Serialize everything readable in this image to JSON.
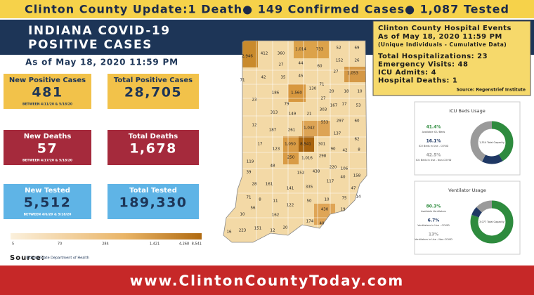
{
  "header": {
    "title": "Clinton County Update:1 Death● 149 Confirmed Cases● 1,087 Tested"
  },
  "indiana": {
    "title": "INDIANA COVID-19",
    "subtitle": "POSITIVE CASES",
    "as_of": "As of May 18, 2020 11:59 PM",
    "stats": [
      {
        "label": "New Positive Cases",
        "value": "481",
        "note": "BETWEEN 4/11/20 & 5/18/20"
      },
      {
        "label": "Total Positive Cases",
        "value": "28,705"
      },
      {
        "label": "New Deaths",
        "value": "57",
        "note": "BETWEEN 4/17/20 & 5/18/20"
      },
      {
        "label": "Total Deaths",
        "value": "1,678"
      },
      {
        "label": "New Tested",
        "value": "5,512",
        "note": "BETWEEN 4/6/20 & 5/18/20"
      },
      {
        "label": "Total Tested",
        "value": "189,330"
      }
    ]
  },
  "legend": {
    "ticks": [
      "5",
      "70",
      "284",
      "1,421",
      "4,268",
      "8,541"
    ]
  },
  "source": {
    "label": "Source:",
    "logo": "Indiana State Department of Health"
  },
  "map": {
    "county_labels": [
      "2,946",
      "412",
      "360",
      "1,014",
      "733",
      "52",
      "69",
      "27",
      "44",
      "60",
      "152",
      "26",
      "71",
      "42",
      "35",
      "45",
      "27",
      "1,053",
      "186",
      "1,560",
      "130",
      "71",
      "20",
      "18",
      "10",
      "23",
      "79",
      "27",
      "313",
      "149",
      "21",
      "303",
      "167",
      "17",
      "53",
      "12",
      "187",
      "261",
      "1,042",
      "553",
      "297",
      "60",
      "137",
      "62",
      "17",
      "123",
      "1,050",
      "8,541",
      "301",
      "90",
      "42",
      "8",
      "250",
      "1,016",
      "298",
      "119",
      "48",
      "152",
      "438",
      "220",
      "106",
      "39",
      "161",
      "117",
      "40",
      "158",
      "28",
      "141",
      "335",
      "47",
      "14",
      "71",
      "8",
      "11",
      "122",
      "50",
      "10",
      "75",
      "10",
      "56",
      "162",
      "430",
      "19",
      "174",
      "20",
      "40",
      "16",
      "223",
      "151",
      "12"
    ]
  },
  "hospital": {
    "lines": [
      "Clinton County Hospital Events",
      "As of May 18, 2020 11:59 PM",
      "(Unique Individuals - Cumulative Data)"
    ],
    "stats": [
      "Total Hospitalizations: 23",
      "Emergency Visits: 48",
      "ICU Admits: 4",
      "Hospital Deaths: 1"
    ],
    "source": "Source: Regenstrief Institute"
  },
  "icu": {
    "title": "ICU Beds Usage",
    "center": "1,514 Total Capacity",
    "items": [
      {
        "pct": "41.4%",
        "label": "Available ICU Beds"
      },
      {
        "pct": "16.1%",
        "label": "ICU Beds in Use - COVID"
      },
      {
        "pct": "42.5%",
        "label": "ICU Beds in Use - Non-COVID"
      }
    ]
  },
  "vent": {
    "title": "Ventilator Usage",
    "center": "3,077 Total Capacity",
    "items": [
      {
        "pct": "80.3%",
        "label": "Available Ventilators"
      },
      {
        "pct": "6.7%",
        "label": "Ventilators in Use - COVID"
      },
      {
        "pct": "13%",
        "label": "Ventilators in Use - Non-COVID"
      }
    ]
  },
  "footer": {
    "url": "www.ClintonCountyToday.com"
  }
}
